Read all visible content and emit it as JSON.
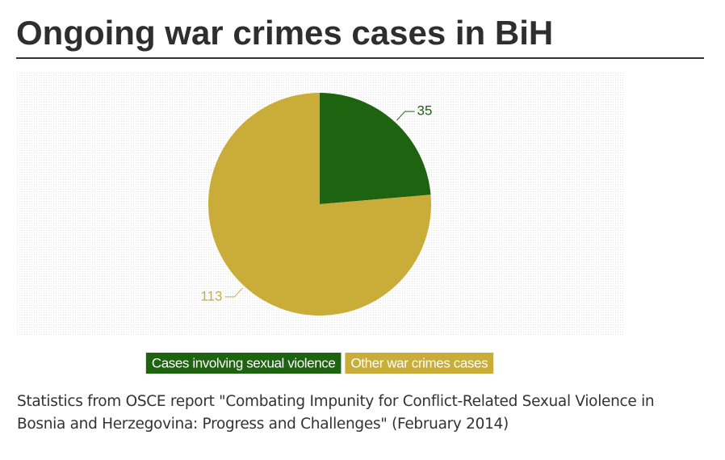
{
  "chart_data": {
    "type": "pie",
    "title": "Ongoing war crimes cases in BiH",
    "categories": [
      "Cases involving sexual violence",
      "Other war crimes cases"
    ],
    "values": [
      35,
      113
    ],
    "colors": [
      "#1e6410",
      "#c9ad38"
    ],
    "caption": "Statistics from OSCE report \"Combating Impunity for Conflict-Related Sexual Violence in Bosnia and Herzegovina: Progress and Challenges\" (February 2014)"
  }
}
